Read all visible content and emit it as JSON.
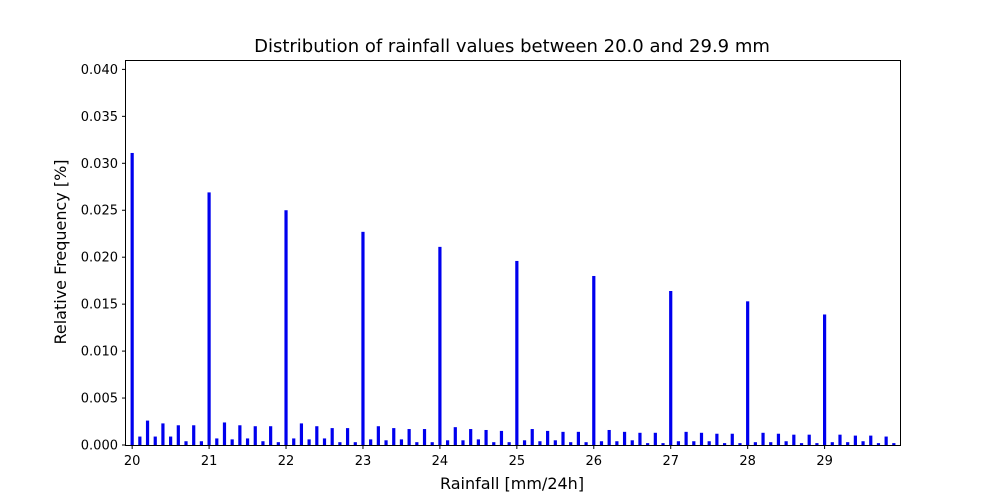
{
  "chart_data": {
    "type": "bar",
    "title": "Distribution of rainfall values between 20.0 and 29.9 mm",
    "xlabel": "Rainfall [mm/24h]",
    "ylabel": "Relative Frequency [%]",
    "xlim": [
      19.92,
      29.98
    ],
    "ylim": [
      0,
      0.041
    ],
    "xticks": [
      20,
      21,
      22,
      23,
      24,
      25,
      26,
      27,
      28,
      29
    ],
    "yticks": [
      "0.000",
      "0.005",
      "0.010",
      "0.015",
      "0.020",
      "0.025",
      "0.030",
      "0.035",
      "0.040"
    ],
    "bar_color": "#0000ee",
    "grid": false,
    "x": [
      20.0,
      20.1,
      20.2,
      20.3,
      20.4,
      20.5,
      20.6,
      20.7,
      20.8,
      20.9,
      21.0,
      21.1,
      21.2,
      21.3,
      21.4,
      21.5,
      21.6,
      21.7,
      21.8,
      21.9,
      22.0,
      22.1,
      22.2,
      22.3,
      22.4,
      22.5,
      22.6,
      22.7,
      22.8,
      22.9,
      23.0,
      23.1,
      23.2,
      23.3,
      23.4,
      23.5,
      23.6,
      23.7,
      23.8,
      23.9,
      24.0,
      24.1,
      24.2,
      24.3,
      24.4,
      24.5,
      24.6,
      24.7,
      24.8,
      24.9,
      25.0,
      25.1,
      25.2,
      25.3,
      25.4,
      25.5,
      25.6,
      25.7,
      25.8,
      25.9,
      26.0,
      26.1,
      26.2,
      26.3,
      26.4,
      26.5,
      26.6,
      26.7,
      26.8,
      26.9,
      27.0,
      27.1,
      27.2,
      27.3,
      27.4,
      27.5,
      27.6,
      27.7,
      27.8,
      27.9,
      28.0,
      28.1,
      28.2,
      28.3,
      28.4,
      28.5,
      28.6,
      28.7,
      28.8,
      28.9,
      29.0,
      29.1,
      29.2,
      29.3,
      29.4,
      29.5,
      29.6,
      29.7,
      29.8,
      29.9
    ],
    "values": [
      0.0311,
      0.0009,
      0.0026,
      0.0009,
      0.0023,
      0.0009,
      0.0021,
      0.0004,
      0.0021,
      0.0004,
      0.0269,
      0.0007,
      0.0024,
      0.0006,
      0.0021,
      0.0007,
      0.002,
      0.0004,
      0.002,
      0.0003,
      0.025,
      0.0007,
      0.0023,
      0.0006,
      0.002,
      0.0007,
      0.0018,
      0.0003,
      0.0018,
      0.0003,
      0.0227,
      0.0006,
      0.002,
      0.0005,
      0.0018,
      0.0006,
      0.0017,
      0.0003,
      0.0017,
      0.0003,
      0.0211,
      0.0005,
      0.0019,
      0.0005,
      0.0017,
      0.0006,
      0.0016,
      0.0003,
      0.0015,
      0.0003,
      0.0196,
      0.0005,
      0.0017,
      0.0004,
      0.0015,
      0.0005,
      0.0014,
      0.0003,
      0.0014,
      0.0003,
      0.018,
      0.0004,
      0.0016,
      0.0004,
      0.0014,
      0.0005,
      0.0013,
      0.0002,
      0.0013,
      0.0002,
      0.0164,
      0.0004,
      0.0014,
      0.0004,
      0.0013,
      0.0004,
      0.0012,
      0.0002,
      0.0012,
      0.0002,
      0.0153,
      0.0003,
      0.0013,
      0.0003,
      0.0012,
      0.0004,
      0.0011,
      0.0002,
      0.0011,
      0.0002,
      0.0139,
      0.0003,
      0.0011,
      0.0003,
      0.001,
      0.0004,
      0.001,
      0.0002,
      0.0009,
      0.0002
    ]
  }
}
